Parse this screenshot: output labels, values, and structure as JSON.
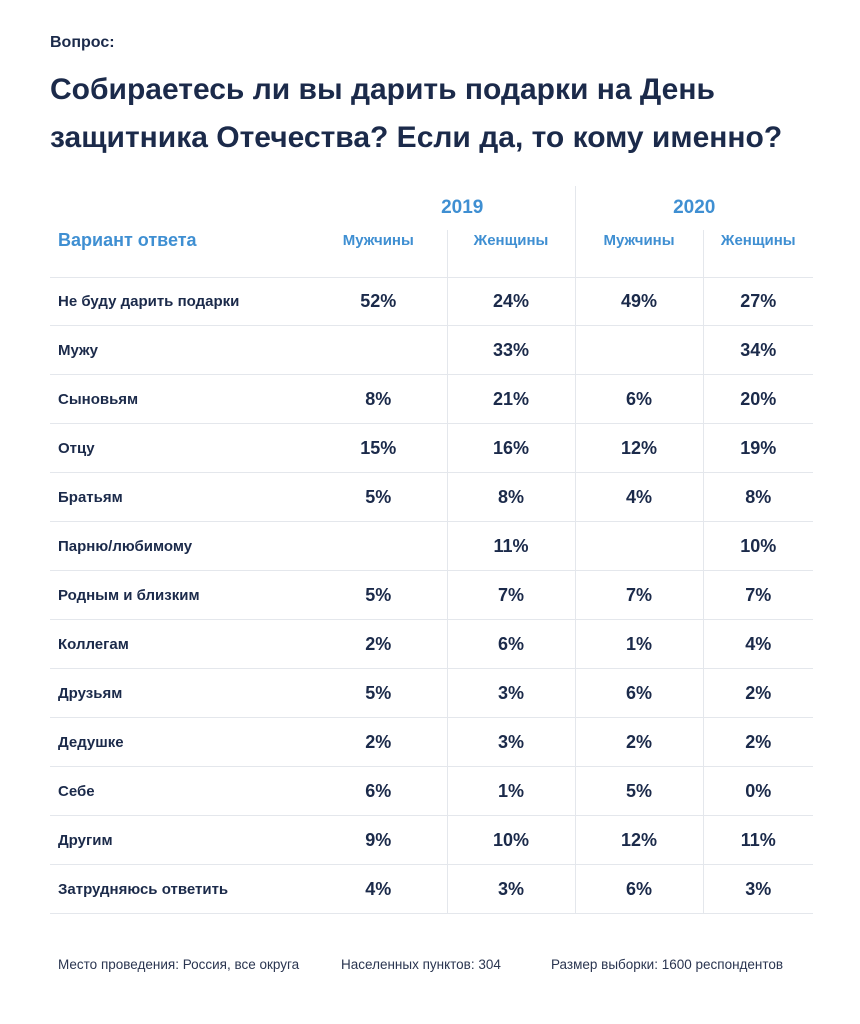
{
  "question_label": "Вопрос:",
  "title": "Собираетесь ли вы дарить подарки на День защитника Отечества? Если да, то кому именно?",
  "colors": {
    "heading": "#1b2a4a",
    "accent": "#3f8fd2",
    "rule": "#e4e7ec"
  },
  "chart_data": {
    "type": "table",
    "title": "Собираетесь ли вы дарить подарки на День защитника Отечества? Если да, то кому именно?",
    "row_header": "Вариант ответа",
    "years": [
      "2019",
      "2020"
    ],
    "columns": [
      "Мужчины",
      "Женщины",
      "Мужчины",
      "Женщины"
    ],
    "rows": [
      {
        "label": "Не буду дарить подарки",
        "values": [
          "52%",
          "24%",
          "49%",
          "27%"
        ]
      },
      {
        "label": "Мужу",
        "values": [
          "",
          "33%",
          "",
          "34%"
        ]
      },
      {
        "label": "Сыновьям",
        "values": [
          "8%",
          "21%",
          "6%",
          "20%"
        ]
      },
      {
        "label": "Отцу",
        "values": [
          "15%",
          "16%",
          "12%",
          "19%"
        ]
      },
      {
        "label": "Братьям",
        "values": [
          "5%",
          "8%",
          "4%",
          "8%"
        ]
      },
      {
        "label": "Парню/любимому",
        "values": [
          "",
          "11%",
          "",
          "10%"
        ]
      },
      {
        "label": "Родным и близким",
        "values": [
          "5%",
          "7%",
          "7%",
          "7%"
        ]
      },
      {
        "label": "Коллегам",
        "values": [
          "2%",
          "6%",
          "1%",
          "4%"
        ]
      },
      {
        "label": "Друзьям",
        "values": [
          "5%",
          "3%",
          "6%",
          "2%"
        ]
      },
      {
        "label": "Дедушке",
        "values": [
          "2%",
          "3%",
          "2%",
          "2%"
        ]
      },
      {
        "label": "Себе",
        "values": [
          "6%",
          "1%",
          "5%",
          "0%"
        ]
      },
      {
        "label": "Другим",
        "values": [
          "9%",
          "10%",
          "12%",
          "11%"
        ]
      },
      {
        "label": "Затрудняюсь ответить",
        "values": [
          "4%",
          "3%",
          "6%",
          "3%"
        ]
      }
    ]
  },
  "footer": {
    "location": "Место проведения: Россия, все округа",
    "settlements": "Населенных пунктов: 304",
    "sample": "Размер выборки: 1600 респондентов"
  }
}
